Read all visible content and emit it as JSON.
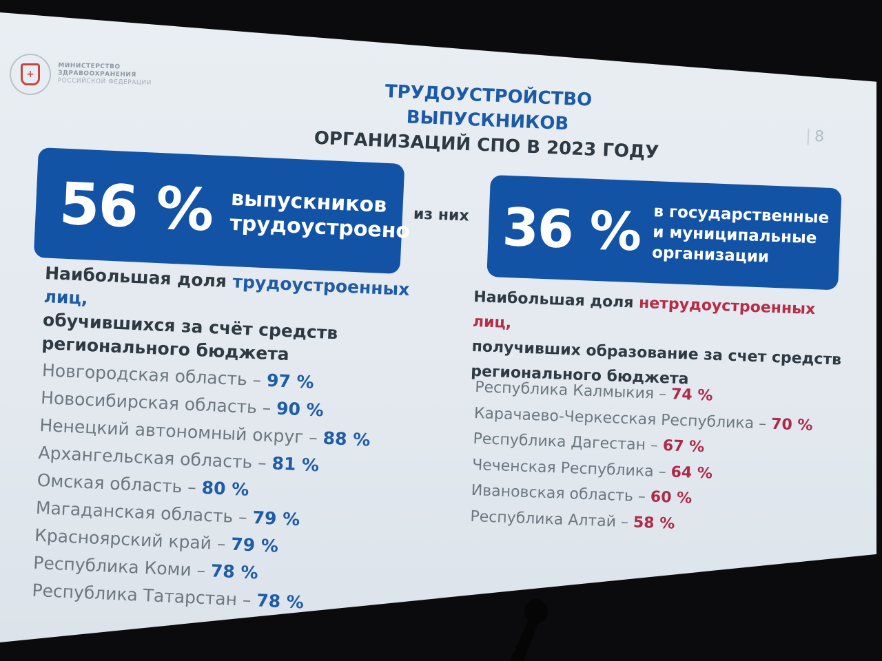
{
  "logo": {
    "line1": "МИНИСТЕРСТВО",
    "line2": "ЗДРАВООХРАНЕНИЯ",
    "line3": "РОССИЙСКОЙ ФЕДЕРАЦИИ",
    "icon": "ministry-emblem-icon"
  },
  "title": {
    "line1": "ТРУДОУСТРОЙСТВО ВЫПУСКНИКОВ",
    "line2": "ОРГАНИЗАЦИЙ СПО В 2023 ГОДУ"
  },
  "page_number": "8",
  "left_box": {
    "value": "56 %",
    "line1": "выпускников",
    "line2": "трудоустроено"
  },
  "connector": "из них",
  "right_box": {
    "value": "36 %",
    "line1": "в государственные",
    "line2": "и муниципальные",
    "line3": "организации"
  },
  "left_heading": {
    "part1": "Наибольшая доля ",
    "accent": "трудоустроенных лиц,",
    "line2": "обучившихся за счёт средств",
    "line3": "регионального бюджета"
  },
  "right_heading": {
    "part1": "Наибольшая доля ",
    "accent": "нетрудоустроенных лиц,",
    "line2": "получивших образование за счет средств",
    "line3": "регионального бюджета"
  },
  "left_list": [
    {
      "name": "Новгородская область  – ",
      "pct": "97 %"
    },
    {
      "name": "Новосибирская область – ",
      "pct": "90 %"
    },
    {
      "name": "Ненецкий автономный округ – ",
      "pct": "88 %"
    },
    {
      "name": "Архангельская область – ",
      "pct": "81 %"
    },
    {
      "name": "Омская область – ",
      "pct": "80 %"
    },
    {
      "name": "Магаданская область – ",
      "pct": "79 %"
    },
    {
      "name": "Красноярский край – ",
      "pct": "79 %"
    },
    {
      "name": "Республика Коми – ",
      "pct": "78 %"
    },
    {
      "name": "Республика Татарстан – ",
      "pct": "78 %"
    }
  ],
  "right_list": [
    {
      "name": "Республика Калмыкия – ",
      "pct": "74 %"
    },
    {
      "name": "Карачаево-Черкесская Республика – ",
      "pct": "70 %"
    },
    {
      "name": "Республика Дагестан – ",
      "pct": "67 %"
    },
    {
      "name": "Чеченская Республика – ",
      "pct": "64 %"
    },
    {
      "name": "Ивановская область – ",
      "pct": "60 %"
    },
    {
      "name": "Республика Алтай – ",
      "pct": "58 %"
    }
  ],
  "colors": {
    "box_blue": "#1353a6",
    "accent_blue": "#1f5ba6",
    "accent_red": "#b62c45",
    "background": "#0b0b0d"
  }
}
